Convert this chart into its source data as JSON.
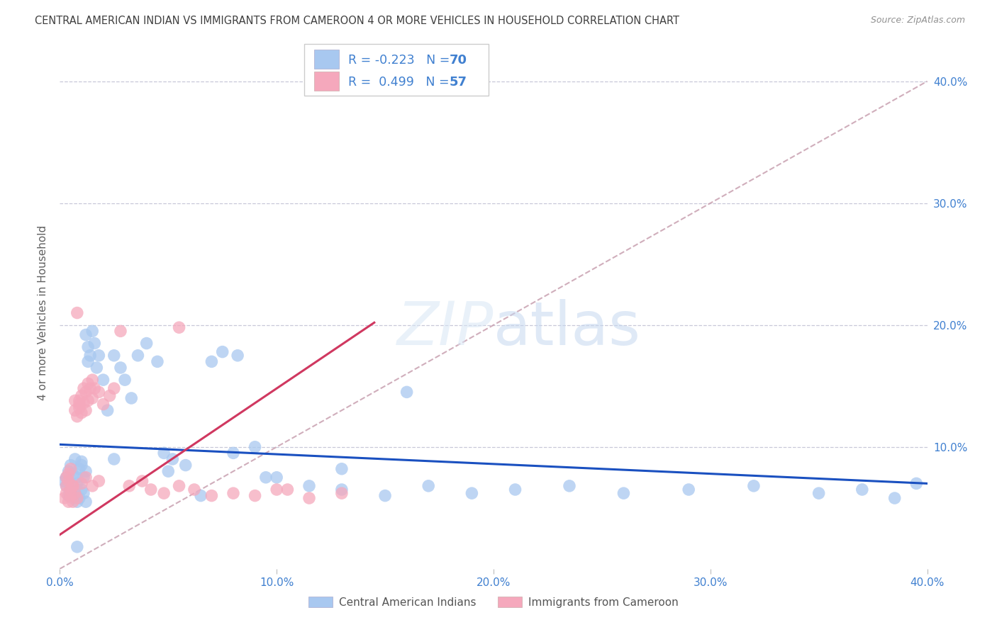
{
  "title": "CENTRAL AMERICAN INDIAN VS IMMIGRANTS FROM CAMEROON 4 OR MORE VEHICLES IN HOUSEHOLD CORRELATION CHART",
  "source": "Source: ZipAtlas.com",
  "ylabel": "4 or more Vehicles in Household",
  "xlim": [
    0.0,
    0.4
  ],
  "ylim": [
    0.0,
    0.42
  ],
  "ytick_values": [
    0.1,
    0.2,
    0.3,
    0.4
  ],
  "ytick_labels": [
    "10.0%",
    "20.0%",
    "30.0%",
    "40.0%"
  ],
  "xtick_values": [
    0.0,
    0.1,
    0.2,
    0.3,
    0.4
  ],
  "xtick_labels": [
    "0.0%",
    "10.0%",
    "20.0%",
    "30.0%",
    "40.0%"
  ],
  "blue_R": -0.223,
  "blue_N": 70,
  "pink_R": 0.499,
  "pink_N": 57,
  "blue_scatter_color": "#A8C8F0",
  "pink_scatter_color": "#F5A8BC",
  "blue_line_color": "#1A50C0",
  "pink_line_color": "#D03860",
  "diagonal_color": "#C8A0B0",
  "legend_label_blue": "Central American Indians",
  "legend_label_pink": "Immigrants from Cameroon",
  "background_color": "#FFFFFF",
  "grid_color": "#C8C8D8",
  "title_color": "#404040",
  "right_tick_color": "#4080D0",
  "bottom_tick_color": "#4080D0",
  "legend_text_color": "#4080D0",
  "blue_scatter_x": [
    0.002,
    0.003,
    0.003,
    0.004,
    0.004,
    0.005,
    0.005,
    0.006,
    0.006,
    0.007,
    0.007,
    0.008,
    0.008,
    0.009,
    0.009,
    0.01,
    0.01,
    0.011,
    0.011,
    0.012,
    0.012,
    0.013,
    0.013,
    0.014,
    0.015,
    0.016,
    0.017,
    0.018,
    0.02,
    0.022,
    0.025,
    0.028,
    0.03,
    0.033,
    0.036,
    0.04,
    0.045,
    0.048,
    0.052,
    0.058,
    0.065,
    0.07,
    0.075,
    0.082,
    0.09,
    0.1,
    0.115,
    0.13,
    0.15,
    0.17,
    0.19,
    0.21,
    0.235,
    0.26,
    0.29,
    0.32,
    0.35,
    0.37,
    0.385,
    0.395,
    0.008,
    0.08,
    0.095,
    0.16,
    0.025,
    0.05,
    0.13,
    0.008,
    0.01,
    0.012
  ],
  "blue_scatter_y": [
    0.072,
    0.068,
    0.075,
    0.06,
    0.08,
    0.065,
    0.085,
    0.058,
    0.078,
    0.062,
    0.09,
    0.055,
    0.07,
    0.082,
    0.058,
    0.065,
    0.088,
    0.062,
    0.075,
    0.055,
    0.192,
    0.182,
    0.17,
    0.175,
    0.195,
    0.185,
    0.165,
    0.175,
    0.155,
    0.13,
    0.175,
    0.165,
    0.155,
    0.14,
    0.175,
    0.185,
    0.17,
    0.095,
    0.09,
    0.085,
    0.06,
    0.17,
    0.178,
    0.175,
    0.1,
    0.075,
    0.068,
    0.065,
    0.06,
    0.068,
    0.062,
    0.065,
    0.068,
    0.062,
    0.065,
    0.068,
    0.062,
    0.065,
    0.058,
    0.07,
    0.018,
    0.095,
    0.075,
    0.145,
    0.09,
    0.08,
    0.082,
    0.075,
    0.085,
    0.08
  ],
  "pink_scatter_x": [
    0.002,
    0.003,
    0.003,
    0.004,
    0.004,
    0.005,
    0.005,
    0.006,
    0.006,
    0.007,
    0.007,
    0.008,
    0.008,
    0.009,
    0.009,
    0.01,
    0.01,
    0.011,
    0.011,
    0.012,
    0.012,
    0.013,
    0.013,
    0.014,
    0.015,
    0.015,
    0.016,
    0.018,
    0.02,
    0.023,
    0.025,
    0.028,
    0.032,
    0.038,
    0.042,
    0.048,
    0.055,
    0.062,
    0.07,
    0.08,
    0.09,
    0.1,
    0.115,
    0.13,
    0.003,
    0.004,
    0.005,
    0.006,
    0.007,
    0.008,
    0.009,
    0.01,
    0.012,
    0.015,
    0.018,
    0.105,
    0.055
  ],
  "pink_scatter_y": [
    0.058,
    0.062,
    0.068,
    0.055,
    0.072,
    0.06,
    0.065,
    0.055,
    0.068,
    0.062,
    0.13,
    0.058,
    0.125,
    0.138,
    0.132,
    0.128,
    0.142,
    0.136,
    0.148,
    0.13,
    0.145,
    0.138,
    0.152,
    0.148,
    0.155,
    0.14,
    0.148,
    0.145,
    0.135,
    0.142,
    0.148,
    0.195,
    0.068,
    0.072,
    0.065,
    0.062,
    0.068,
    0.065,
    0.06,
    0.062,
    0.06,
    0.065,
    0.058,
    0.062,
    0.075,
    0.078,
    0.082,
    0.068,
    0.138,
    0.21,
    0.135,
    0.07,
    0.075,
    0.068,
    0.072,
    0.065,
    0.198
  ]
}
